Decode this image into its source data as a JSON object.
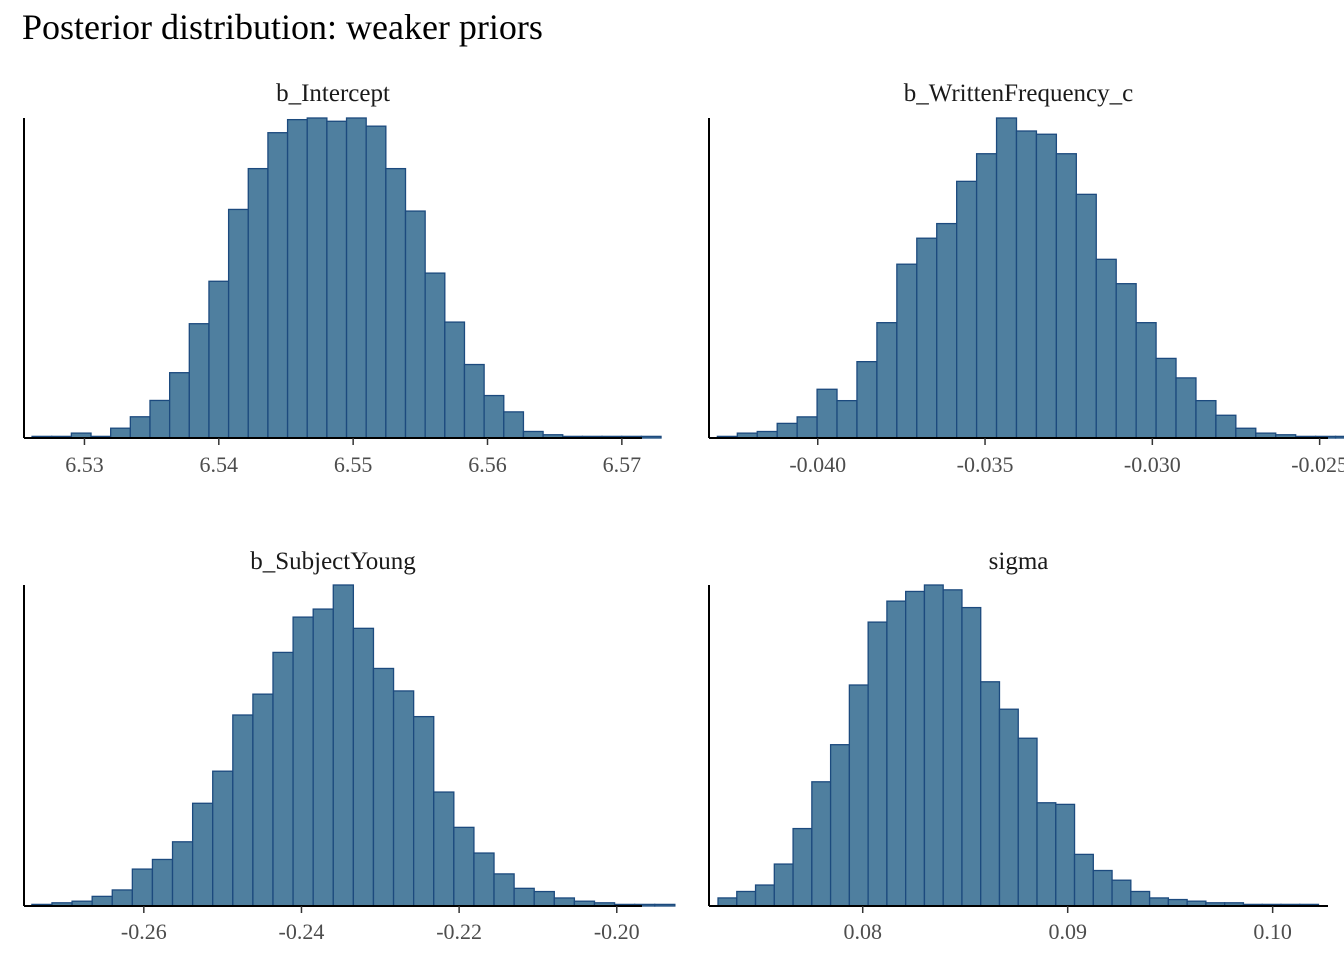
{
  "title": "Posterior distribution: weaker priors",
  "colors": {
    "fill": "#4f7f9f",
    "stroke": "#1c4a7e"
  },
  "chart_data": [
    {
      "type": "bar",
      "title": "b_Intercept",
      "xlim": [
        6.5255,
        6.5715
      ],
      "ticks": [
        "6.53",
        "6.54",
        "6.55",
        "6.56",
        "6.57"
      ],
      "tick_values": [
        6.53,
        6.54,
        6.55,
        6.56,
        6.57
      ],
      "bin_start": 6.5261,
      "bin_width": 0.001463,
      "values": [
        0.5,
        0.5,
        1.5,
        0.5,
        3,
        6.5,
        11.5,
        20,
        35,
        48,
        70,
        82.5,
        93.5,
        97.5,
        98,
        97,
        98,
        95.5,
        82.5,
        69.5,
        50.5,
        35.5,
        22.5,
        13,
        8,
        2,
        1,
        0.5,
        0.5,
        0.5,
        0.5,
        0.5
      ]
    },
    {
      "type": "bar",
      "title": "b_WrittenFrequency_c",
      "xlim": [
        -0.04325,
        -0.02475
      ],
      "ticks": [
        "-0.040",
        "-0.035",
        "-0.030",
        "-0.025"
      ],
      "tick_values": [
        -0.04,
        -0.035,
        -0.03,
        -0.025
      ],
      "bin_start": -0.043,
      "bin_width": 0.000596,
      "values": [
        0.5,
        1.5,
        2,
        4.5,
        6.5,
        15,
        11.5,
        23.5,
        35.5,
        53.5,
        61.5,
        66,
        79,
        87.5,
        98.5,
        94.5,
        93.5,
        87.5,
        75,
        55,
        47.5,
        35.5,
        24.5,
        18.5,
        11.5,
        7,
        3,
        1.5,
        1,
        0.5,
        0.5,
        0.5
      ]
    },
    {
      "type": "bar",
      "title": "b_SubjectYoung",
      "xlim": [
        -0.2752,
        -0.1968
      ],
      "ticks": [
        "-0.26",
        "-0.24",
        "-0.22",
        "-0.20"
      ],
      "tick_values": [
        -0.26,
        -0.24,
        -0.22,
        -0.2
      ],
      "bin_start": -0.2742,
      "bin_width": 0.002549,
      "values": [
        0.5,
        1,
        1.5,
        3,
        5,
        11.5,
        14.5,
        20,
        32,
        42,
        59.5,
        66,
        79,
        90,
        92.5,
        100,
        86.5,
        74,
        67,
        59,
        35.5,
        24.5,
        16.5,
        10,
        5.5,
        4.5,
        2.5,
        1.5,
        1,
        0.5,
        0.5,
        0.5
      ]
    },
    {
      "type": "bar",
      "title": "sigma",
      "xlim": [
        0.0725,
        0.1027
      ],
      "ticks": [
        "0.08",
        "0.09",
        "0.10"
      ],
      "tick_values": [
        0.08,
        0.09,
        0.1
      ],
      "bin_start": 0.07294,
      "bin_width": 0.0009155,
      "values": [
        2.5,
        4.5,
        6.5,
        13,
        24,
        38.5,
        50,
        68.5,
        88,
        94.5,
        97.5,
        99.5,
        98,
        92.5,
        69.5,
        61,
        52,
        32,
        31.5,
        16,
        11,
        8,
        4.5,
        2.5,
        2,
        1.5,
        1,
        1,
        0.5,
        0.5,
        0.5,
        0.5
      ]
    }
  ]
}
